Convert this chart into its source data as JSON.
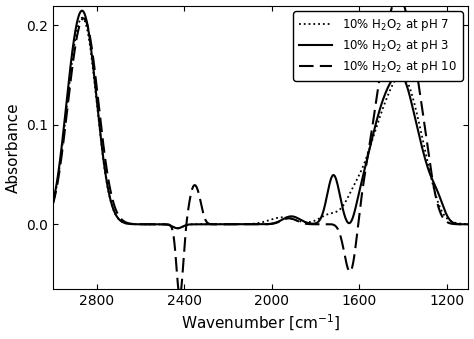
{
  "xlabel": "Wavenumber [cm$^{-1}$]",
  "ylabel": "Absorbance",
  "xlim": [
    3000,
    1100
  ],
  "ylim": [
    -0.065,
    0.22
  ],
  "yticks": [
    0.0,
    0.1,
    0.2
  ],
  "xticks": [
    2800,
    2400,
    2000,
    1600,
    1200
  ],
  "legend": [
    {
      "label": "10% H$_2$O$_2$ at pH 7",
      "linestyle": "dotted",
      "color": "black",
      "linewidth": 1.3
    },
    {
      "label": "10% H$_2$O$_2$ at pH 3",
      "linestyle": "solid",
      "color": "black",
      "linewidth": 1.5
    },
    {
      "label": "10% H$_2$O$_2$ at pH 10",
      "linestyle": "dashed",
      "color": "black",
      "linewidth": 1.5
    }
  ],
  "background_color": "#ffffff"
}
